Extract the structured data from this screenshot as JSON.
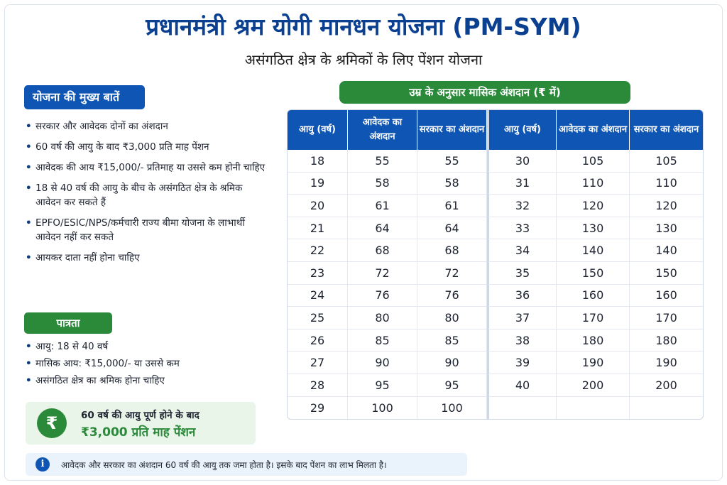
{
  "title": "प्रधानमंत्री श्रम योगी मानधन योजना (PM-SYM)",
  "subtitle": "असंगठित क्षेत्र के श्रमिकों के लिए पेंशन योजना",
  "features": {
    "heading": "योजना की मुख्य बातें",
    "items": [
      "सरकार और आवेदक दोनों का अंशदान",
      "60 वर्ष की आयु के बाद ₹3,000 प्रति माह पेंशन",
      "आवेदक की आय ₹15,000/- प्रतिमाह या उससे कम होनी चाहिए",
      "18 से 40 वर्ष की आयु के बीच के असंगठित क्षेत्र के श्रमिक आवेदन कर सकते हैं",
      "EPFO/ESIC/NPS/कर्मचारी राज्य बीमा योजना के लाभार्थी आवेदन नहीं कर सकते",
      "आयकर दाता नहीं होना चाहिए"
    ]
  },
  "eligibility": {
    "heading": "पात्रता",
    "items": [
      "आयु: 18 से 40 वर्ष",
      "मासिक आय: ₹15,000/- या उससे कम",
      "असंगठित क्षेत्र का श्रमिक होना चाहिए"
    ]
  },
  "pension": {
    "icon": "rupee-icon",
    "symbol": "₹",
    "line1": "60 वर्ष की आयु पूर्ण होने के बाद",
    "line2": "₹3,000 प्रति माह पेंशन"
  },
  "note": {
    "icon": "info-icon",
    "symbol": "i",
    "text": "आवेदक और सरकार का अंशदान 60 वर्ष की आयु तक जमा होता है। इसके बाद पेंशन का लाभ मिलता है।"
  },
  "table": {
    "heading": "उम्र के अनुसार मासिक अंशदान (₹ में)",
    "headers": [
      "आयु (वर्ष)",
      "आवेदक का अंशदान",
      "सरकार का अंशदान",
      "आयु (वर्ष)",
      "आवेदक का अंशदान",
      "सरकार का अंशदान"
    ],
    "rows": [
      [
        "18",
        "55",
        "55",
        "30",
        "105",
        "105"
      ],
      [
        "19",
        "58",
        "58",
        "31",
        "110",
        "110"
      ],
      [
        "20",
        "61",
        "61",
        "32",
        "120",
        "120"
      ],
      [
        "21",
        "64",
        "64",
        "33",
        "130",
        "130"
      ],
      [
        "22",
        "68",
        "68",
        "34",
        "140",
        "140"
      ],
      [
        "23",
        "72",
        "72",
        "35",
        "150",
        "150"
      ],
      [
        "24",
        "76",
        "76",
        "36",
        "160",
        "160"
      ],
      [
        "25",
        "80",
        "80",
        "37",
        "170",
        "170"
      ],
      [
        "26",
        "85",
        "85",
        "38",
        "180",
        "180"
      ],
      [
        "27",
        "90",
        "90",
        "39",
        "190",
        "190"
      ],
      [
        "28",
        "95",
        "95",
        "40",
        "200",
        "200"
      ],
      [
        "29",
        "100",
        "100",
        "",
        "",
        ""
      ]
    ]
  },
  "colors": {
    "title": "#0b3f8f",
    "primary_blue": "#0f55b4",
    "primary_green": "#2a8a3a",
    "pension_bg": "#e8f5e8",
    "note_bg": "#eaf3fc"
  }
}
